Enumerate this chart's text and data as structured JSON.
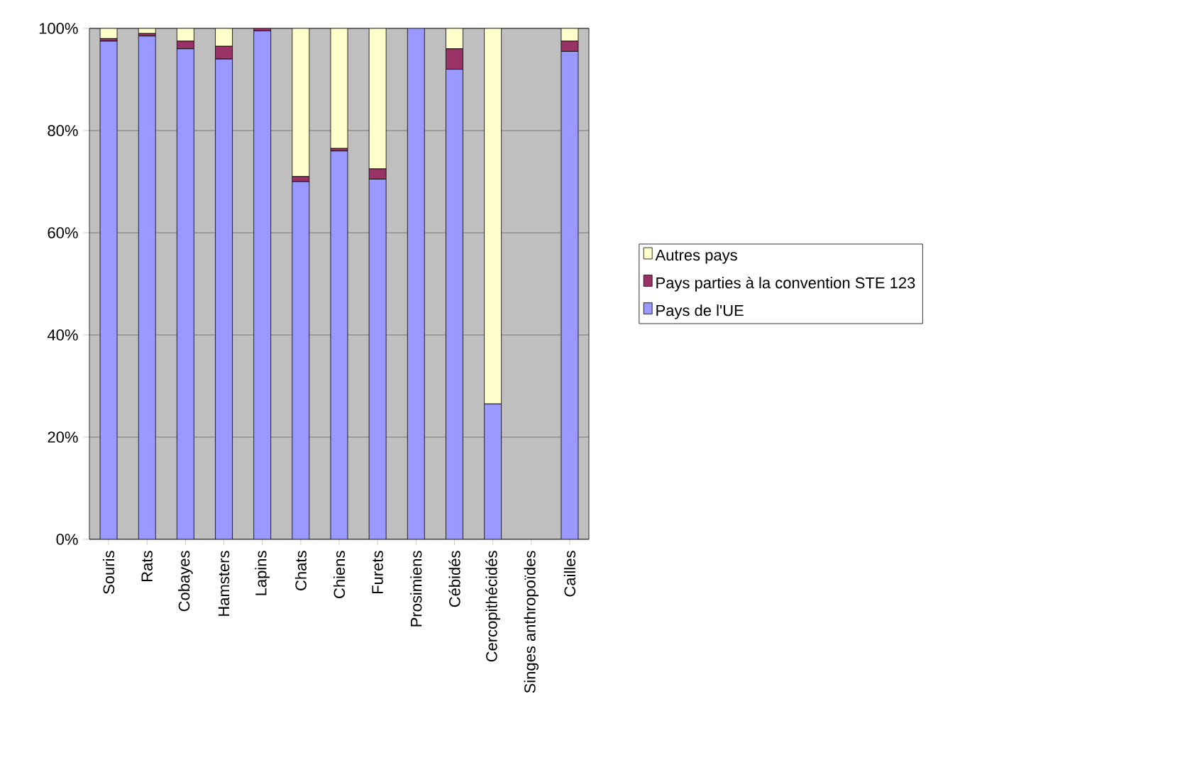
{
  "chart_data": {
    "type": "bar",
    "stacked": true,
    "categories": [
      "Souris",
      "Rats",
      "Cobayes",
      "Hamsters",
      "Lapins",
      "Chats",
      "Chiens",
      "Furets",
      "Prosimiens",
      "Cébidés",
      "Cercopithécidés",
      "Singes anthropoïdes",
      "Cailles"
    ],
    "series": [
      {
        "name": "Pays de l'UE",
        "color": "#9999ff",
        "values": [
          97.5,
          98.5,
          96,
          94,
          99.5,
          70,
          76,
          70.5,
          100,
          92,
          26.5,
          0,
          95.5
        ]
      },
      {
        "name": "Pays parties à la convention STE 123",
        "color": "#993366",
        "values": [
          0.5,
          0.5,
          1.5,
          2.5,
          0.5,
          1,
          0.5,
          2,
          0,
          4,
          0,
          0,
          2
        ]
      },
      {
        "name": "Autres pays",
        "color": "#ffffcc",
        "values": [
          2,
          1,
          2.5,
          3.5,
          0,
          29,
          23.5,
          27.5,
          0,
          4,
          73.5,
          0,
          2.5
        ]
      }
    ],
    "ylim": [
      0,
      100
    ],
    "yticks": [
      {
        "value": 0,
        "label": "0%"
      },
      {
        "value": 20,
        "label": "20%"
      },
      {
        "value": 40,
        "label": "40%"
      },
      {
        "value": 60,
        "label": "60%"
      },
      {
        "value": 80,
        "label": "80%"
      },
      {
        "value": 100,
        "label": "100%"
      }
    ],
    "grid": "y",
    "legend": "right"
  }
}
